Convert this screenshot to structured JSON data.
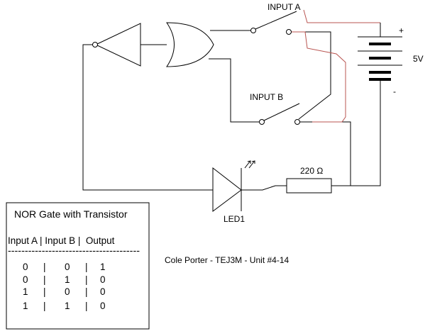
{
  "labels": {
    "input_a": "INPUT A",
    "input_b": "INPUT B",
    "battery_plus": "+",
    "battery_minus": "-",
    "battery_voltage": "5V",
    "resistor": "220 Ω",
    "led": "LED1",
    "credit": "Cole Porter - TEJ3M - Unit #4-14"
  },
  "truth_table": {
    "title": "NOR Gate with Transistor",
    "header": "Input A | Input B |  Output",
    "separator": "---------------------------------------",
    "rows": [
      [
        "0",
        "0",
        "1"
      ],
      [
        "0",
        "1",
        "0"
      ],
      [
        "1",
        "0",
        "0"
      ],
      [
        "1",
        "1",
        "0"
      ]
    ],
    "divider": "|"
  },
  "colors": {
    "wire": "#000000",
    "highlight_wire": "#b85450"
  }
}
